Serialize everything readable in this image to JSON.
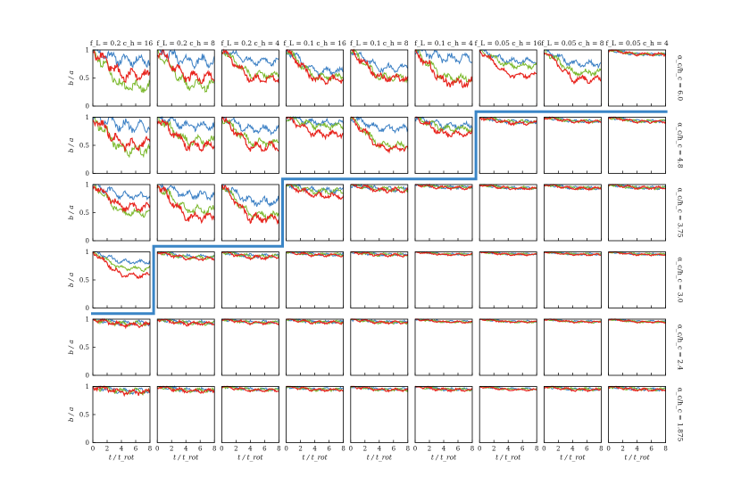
{
  "chart_data": {
    "type": "line",
    "layout": "grid",
    "columns": [
      {
        "title": "f_L = 0.2  c_h = 16",
        "f_L": 0.2,
        "c_h": 16
      },
      {
        "title": "f_L = 0.2  c_h = 8",
        "f_L": 0.2,
        "c_h": 8
      },
      {
        "title": "f_L = 0.2  c_h = 4",
        "f_L": 0.2,
        "c_h": 4
      },
      {
        "title": "f_L = 0.1  c_h = 16",
        "f_L": 0.1,
        "c_h": 16
      },
      {
        "title": "f_L = 0.1  c_h = 8",
        "f_L": 0.1,
        "c_h": 8
      },
      {
        "title": "f_L = 0.1  c_h = 4",
        "f_L": 0.1,
        "c_h": 4
      },
      {
        "title": "f_L = 0.05  c_h = 16",
        "f_L": 0.05,
        "c_h": 16
      },
      {
        "title": "f_L = 0.05  c_h = 8",
        "f_L": 0.05,
        "c_h": 8
      },
      {
        "title": "f_L = 0.05  c_h = 4",
        "f_L": 0.05,
        "c_h": 4
      }
    ],
    "rows": [
      {
        "label": "α_c/h_c = 6.0",
        "value": 6.0
      },
      {
        "label": "α_c/h_c = 4.8",
        "value": 4.8
      },
      {
        "label": "α_c/h_c = 3.75",
        "value": 3.75
      },
      {
        "label": "α_c/h_c = 3.0",
        "value": 3.0
      },
      {
        "label": "α_c/h_c = 2.4",
        "value": 2.4
      },
      {
        "label": "α_c/h_c = 1.875",
        "value": 1.875
      }
    ],
    "xlabel": "t / t_rot",
    "ylabel": "b / a",
    "xlim": [
      0,
      8
    ],
    "ylim": [
      0,
      1
    ],
    "xticks": [
      "0",
      "2",
      "4",
      "6",
      "8"
    ],
    "yticks": [
      "0",
      "0.5",
      "1"
    ],
    "series_colors": {
      "blue": "#3a7fc4",
      "green": "#7ab82a",
      "red": "#e8241e"
    },
    "boundary_color": "#3a85c6",
    "grid": false,
    "panels": [
      [
        {
          "blue_end": 0.82,
          "green_end": 0.35,
          "red_end": 0.55,
          "amp": 0.12
        },
        {
          "blue_end": 0.8,
          "green_end": 0.38,
          "red_end": 0.52,
          "amp": 0.12
        },
        {
          "blue_end": 0.8,
          "green_end": 0.55,
          "red_end": 0.48,
          "amp": 0.08
        },
        {
          "blue_end": 0.62,
          "green_end": 0.52,
          "red_end": 0.47,
          "amp": 0.08
        },
        {
          "blue_end": 0.68,
          "green_end": 0.52,
          "red_end": 0.5,
          "amp": 0.08
        },
        {
          "blue_end": 0.85,
          "green_end": 0.5,
          "red_end": 0.42,
          "amp": 0.1
        },
        {
          "blue_end": 0.8,
          "green_end": 0.72,
          "red_end": 0.55,
          "amp": 0.06
        },
        {
          "blue_end": 0.75,
          "green_end": 0.6,
          "red_end": 0.48,
          "amp": 0.07
        },
        {
          "blue_end": 0.92,
          "green_end": 0.92,
          "red_end": 0.92,
          "amp": 0.03
        }
      ],
      [
        {
          "blue_end": 0.85,
          "green_end": 0.42,
          "red_end": 0.52,
          "amp": 0.12
        },
        {
          "blue_end": 0.85,
          "green_end": 0.58,
          "red_end": 0.5,
          "amp": 0.1
        },
        {
          "blue_end": 0.78,
          "green_end": 0.55,
          "red_end": 0.48,
          "amp": 0.09
        },
        {
          "blue_end": 0.9,
          "green_end": 0.85,
          "red_end": 0.7,
          "amp": 0.07
        },
        {
          "blue_end": 0.8,
          "green_end": 0.5,
          "red_end": 0.45,
          "amp": 0.07
        },
        {
          "blue_end": 0.85,
          "green_end": 0.8,
          "red_end": 0.7,
          "amp": 0.07
        },
        {
          "blue_end": 0.92,
          "green_end": 0.92,
          "red_end": 0.9,
          "amp": 0.04
        },
        {
          "blue_end": 0.93,
          "green_end": 0.93,
          "red_end": 0.92,
          "amp": 0.03
        },
        {
          "blue_end": 0.93,
          "green_end": 0.93,
          "red_end": 0.92,
          "amp": 0.03
        }
      ],
      [
        {
          "blue_end": 0.8,
          "green_end": 0.5,
          "red_end": 0.6,
          "amp": 0.08
        },
        {
          "blue_end": 0.82,
          "green_end": 0.55,
          "red_end": 0.42,
          "amp": 0.09
        },
        {
          "blue_end": 0.7,
          "green_end": 0.45,
          "red_end": 0.4,
          "amp": 0.09
        },
        {
          "blue_end": 0.9,
          "green_end": 0.88,
          "red_end": 0.8,
          "amp": 0.06
        },
        {
          "blue_end": 0.92,
          "green_end": 0.92,
          "red_end": 0.9,
          "amp": 0.05
        },
        {
          "blue_end": 0.95,
          "green_end": 0.95,
          "red_end": 0.94,
          "amp": 0.03
        },
        {
          "blue_end": 0.94,
          "green_end": 0.94,
          "red_end": 0.93,
          "amp": 0.03
        },
        {
          "blue_end": 0.94,
          "green_end": 0.94,
          "red_end": 0.93,
          "amp": 0.03
        },
        {
          "blue_end": 0.94,
          "green_end": 0.94,
          "red_end": 0.94,
          "amp": 0.03
        }
      ],
      [
        {
          "blue_end": 0.82,
          "green_end": 0.7,
          "red_end": 0.58,
          "amp": 0.05
        },
        {
          "blue_end": 0.92,
          "green_end": 0.9,
          "red_end": 0.88,
          "amp": 0.04
        },
        {
          "blue_end": 0.93,
          "green_end": 0.92,
          "red_end": 0.9,
          "amp": 0.04
        },
        {
          "blue_end": 0.95,
          "green_end": 0.95,
          "red_end": 0.94,
          "amp": 0.03
        },
        {
          "blue_end": 0.95,
          "green_end": 0.95,
          "red_end": 0.94,
          "amp": 0.03
        },
        {
          "blue_end": 0.96,
          "green_end": 0.96,
          "red_end": 0.95,
          "amp": 0.02
        },
        {
          "blue_end": 0.96,
          "green_end": 0.96,
          "red_end": 0.95,
          "amp": 0.02
        },
        {
          "blue_end": 0.96,
          "green_end": 0.96,
          "red_end": 0.95,
          "amp": 0.02
        },
        {
          "blue_end": 0.96,
          "green_end": 0.96,
          "red_end": 0.95,
          "amp": 0.02
        }
      ],
      [
        {
          "blue_end": 0.93,
          "green_end": 0.92,
          "red_end": 0.9,
          "amp": 0.05
        },
        {
          "blue_end": 0.94,
          "green_end": 0.93,
          "red_end": 0.92,
          "amp": 0.04
        },
        {
          "blue_end": 0.95,
          "green_end": 0.94,
          "red_end": 0.93,
          "amp": 0.03
        },
        {
          "blue_end": 0.95,
          "green_end": 0.95,
          "red_end": 0.94,
          "amp": 0.03
        },
        {
          "blue_end": 0.95,
          "green_end": 0.94,
          "red_end": 0.94,
          "amp": 0.03
        },
        {
          "blue_end": 0.96,
          "green_end": 0.95,
          "red_end": 0.95,
          "amp": 0.02
        },
        {
          "blue_end": 0.96,
          "green_end": 0.95,
          "red_end": 0.95,
          "amp": 0.02
        },
        {
          "blue_end": 0.96,
          "green_end": 0.95,
          "red_end": 0.95,
          "amp": 0.02
        },
        {
          "blue_end": 0.96,
          "green_end": 0.95,
          "red_end": 0.95,
          "amp": 0.02
        }
      ],
      [
        {
          "blue_end": 0.92,
          "green_end": 0.91,
          "red_end": 0.9,
          "amp": 0.06
        },
        {
          "blue_end": 0.94,
          "green_end": 0.93,
          "red_end": 0.92,
          "amp": 0.04
        },
        {
          "blue_end": 0.95,
          "green_end": 0.94,
          "red_end": 0.93,
          "amp": 0.03
        },
        {
          "blue_end": 0.95,
          "green_end": 0.94,
          "red_end": 0.94,
          "amp": 0.03
        },
        {
          "blue_end": 0.95,
          "green_end": 0.94,
          "red_end": 0.94,
          "amp": 0.03
        },
        {
          "blue_end": 0.95,
          "green_end": 0.95,
          "red_end": 0.94,
          "amp": 0.03
        },
        {
          "blue_end": 0.96,
          "green_end": 0.95,
          "red_end": 0.94,
          "amp": 0.02
        },
        {
          "blue_end": 0.95,
          "green_end": 0.95,
          "red_end": 0.94,
          "amp": 0.03
        },
        {
          "blue_end": 0.95,
          "green_end": 0.95,
          "red_end": 0.94,
          "amp": 0.03
        }
      ]
    ],
    "stability_boundary_cells_above": [
      [
        0,
        0
      ],
      [
        0,
        1
      ],
      [
        0,
        2
      ],
      [
        0,
        3
      ],
      [
        0,
        4
      ],
      [
        0,
        5
      ],
      [
        0,
        6
      ],
      [
        0,
        7
      ],
      [
        0,
        8
      ],
      [
        1,
        0
      ],
      [
        1,
        1
      ],
      [
        1,
        2
      ],
      [
        1,
        3
      ],
      [
        1,
        4
      ],
      [
        1,
        5
      ],
      [
        2,
        0
      ],
      [
        2,
        1
      ],
      [
        2,
        2
      ],
      [
        3,
        0
      ]
    ]
  }
}
